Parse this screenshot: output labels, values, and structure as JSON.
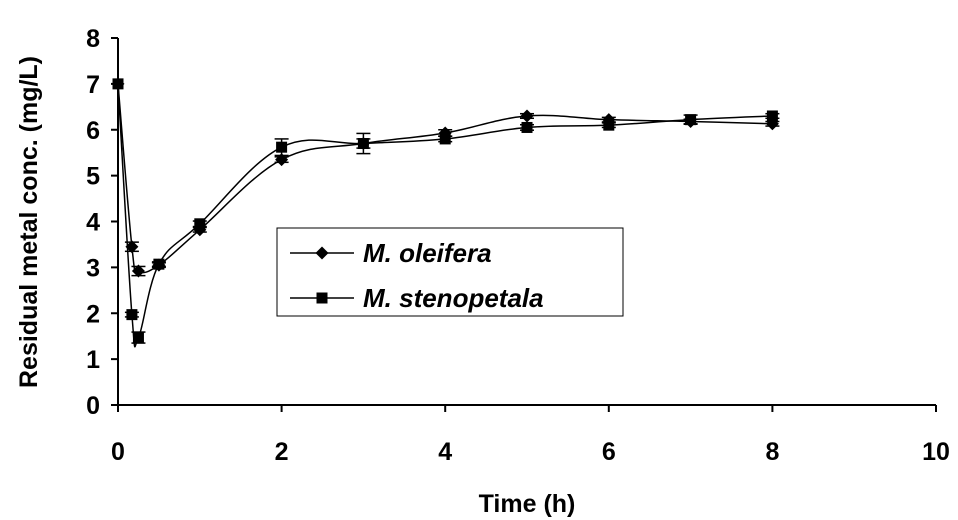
{
  "chart_data": {
    "type": "line",
    "xlabel": "Time (h)",
    "ylabel": "Residual metal  conc. (mg/L)",
    "xlim": [
      0,
      10
    ],
    "ylim": [
      0,
      8
    ],
    "x_ticks": [
      "0",
      "2",
      "4",
      "6",
      "8",
      "10"
    ],
    "y_ticks": [
      "0",
      "1",
      "2",
      "3",
      "4",
      "5",
      "6",
      "7",
      "8"
    ],
    "grid": false,
    "legend_position": "center",
    "series": [
      {
        "name": "M. oleifera",
        "marker": "diamond",
        "x": [
          0,
          0.17,
          0.25,
          0.5,
          1,
          2,
          3,
          4,
          5,
          6,
          7,
          8
        ],
        "y": [
          7.0,
          3.45,
          2.92,
          3.05,
          3.82,
          5.35,
          5.7,
          5.93,
          6.3,
          6.22,
          6.18,
          6.13
        ],
        "err": [
          0,
          0.1,
          0.1,
          0.05,
          0.05,
          0.06,
          0.1,
          0.07,
          0.05,
          0.05,
          0.05,
          0.05
        ]
      },
      {
        "name": "M. stenopetala",
        "marker": "square",
        "x": [
          0,
          0.17,
          0.25,
          0.5,
          1,
          2,
          3,
          4,
          5,
          6,
          7,
          8
        ],
        "y": [
          7.0,
          1.97,
          1.47,
          3.07,
          3.95,
          5.62,
          5.7,
          5.8,
          6.05,
          6.1,
          6.22,
          6.3
        ],
        "err": [
          0,
          0.05,
          0.12,
          0.05,
          0.06,
          0.18,
          0.22,
          0.06,
          0.06,
          0.05,
          0.1,
          0.05
        ]
      }
    ]
  }
}
